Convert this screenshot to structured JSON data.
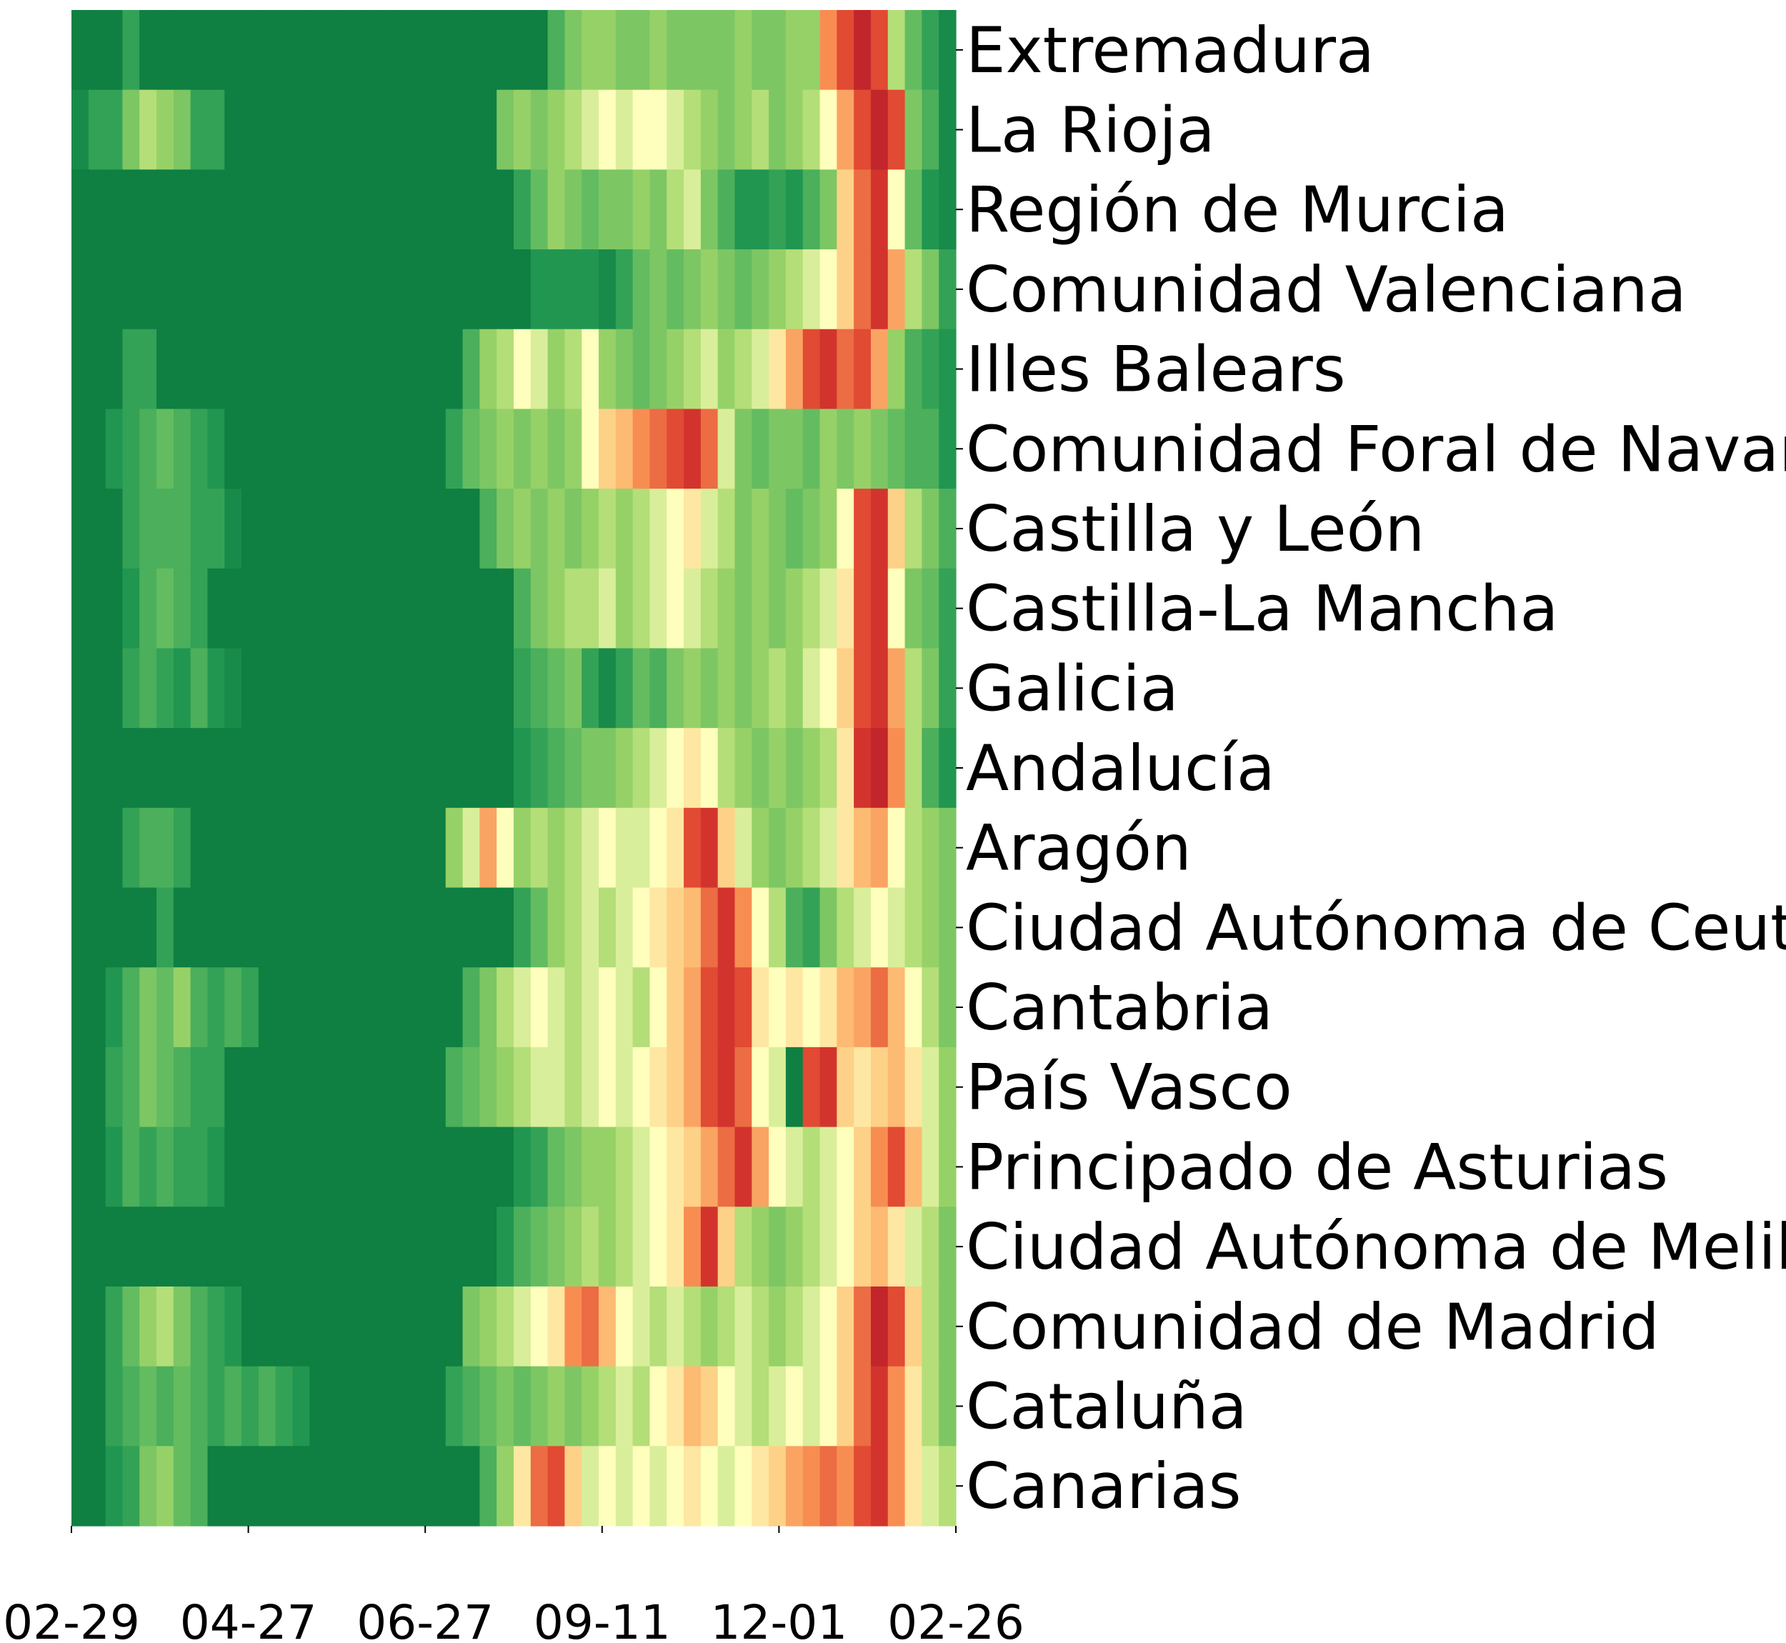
{
  "chart_data": {
    "type": "heatmap",
    "title": "",
    "xlabel": "",
    "ylabel": "",
    "x_ticks": [
      "02-29",
      "04-27",
      "06-27",
      "09-11",
      "12-01",
      "02-26"
    ],
    "rows": [
      "Extremadura",
      "La Rioja",
      "Región de Murcia",
      "Comunidad Valenciana",
      "Illes Balears",
      "Comunidad Foral de Navarra",
      "Castilla y León",
      "Castilla-La Mancha",
      "Galicia",
      "Andalucía",
      "Aragón",
      "Ciudad Autónoma de Ceuta",
      "Cantabria",
      "País Vasco",
      "Principado de Asturias",
      "Ciudad Autónoma de Melilla",
      "Comunidad de Madrid",
      "Cataluña",
      "Canarias"
    ],
    "colormap": "RdYlGn_r",
    "color_low": "#0f7f42",
    "color_mid": "#fefebd",
    "color_high": "#b2182b",
    "value_range": [
      0,
      1
    ],
    "n_columns": 52,
    "values": [
      [
        0,
        0,
        0,
        0.15,
        0,
        0,
        0,
        0,
        0,
        0,
        0,
        0,
        0,
        0,
        0,
        0,
        0,
        0,
        0,
        0,
        0,
        0,
        0,
        0,
        0,
        0,
        0,
        0,
        0.2,
        0.3,
        0.35,
        0.35,
        0.3,
        0.3,
        0.35,
        0.3,
        0.3,
        0.3,
        0.3,
        0.35,
        0.3,
        0.3,
        0.35,
        0.35,
        0.75,
        0.85,
        0.95,
        0.85,
        0.4,
        0.25,
        0.15,
        0.05
      ],
      [
        0.05,
        0.15,
        0.15,
        0.3,
        0.4,
        0.35,
        0.3,
        0.15,
        0.15,
        0,
        0,
        0,
        0,
        0,
        0,
        0,
        0,
        0,
        0,
        0,
        0,
        0,
        0,
        0,
        0,
        0.3,
        0.35,
        0.3,
        0.35,
        0.4,
        0.45,
        0.5,
        0.45,
        0.5,
        0.5,
        0.45,
        0.4,
        0.35,
        0.3,
        0.35,
        0.4,
        0.3,
        0.35,
        0.4,
        0.5,
        0.7,
        0.85,
        0.95,
        0.85,
        0.3,
        0.2,
        0.05
      ],
      [
        0,
        0,
        0,
        0,
        0,
        0,
        0,
        0,
        0,
        0,
        0,
        0,
        0,
        0,
        0,
        0,
        0,
        0,
        0,
        0,
        0,
        0,
        0,
        0,
        0,
        0,
        0.15,
        0.25,
        0.35,
        0.3,
        0.25,
        0.3,
        0.3,
        0.35,
        0.3,
        0.4,
        0.45,
        0.3,
        0.2,
        0.1,
        0.1,
        0.15,
        0.1,
        0.2,
        0.3,
        0.6,
        0.8,
        0.9,
        0.5,
        0.25,
        0.1,
        0.05
      ],
      [
        0,
        0,
        0,
        0,
        0,
        0,
        0,
        0,
        0,
        0,
        0,
        0,
        0,
        0,
        0,
        0,
        0,
        0,
        0,
        0,
        0,
        0,
        0,
        0,
        0,
        0,
        0,
        0.1,
        0.1,
        0.1,
        0.1,
        0.05,
        0.15,
        0.25,
        0.3,
        0.25,
        0.3,
        0.35,
        0.3,
        0.25,
        0.3,
        0.35,
        0.4,
        0.45,
        0.5,
        0.6,
        0.8,
        0.9,
        0.7,
        0.4,
        0.3,
        0.15
      ],
      [
        0,
        0,
        0,
        0.15,
        0.15,
        0,
        0,
        0,
        0,
        0,
        0,
        0,
        0,
        0,
        0,
        0,
        0,
        0,
        0,
        0,
        0,
        0,
        0,
        0.2,
        0.35,
        0.4,
        0.5,
        0.45,
        0.35,
        0.4,
        0.5,
        0.35,
        0.3,
        0.25,
        0.3,
        0.35,
        0.4,
        0.45,
        0.35,
        0.4,
        0.45,
        0.55,
        0.7,
        0.85,
        0.9,
        0.8,
        0.85,
        0.7,
        0.35,
        0.2,
        0.15,
        0.1
      ],
      [
        0,
        0,
        0.1,
        0.15,
        0.2,
        0.25,
        0.2,
        0.15,
        0.1,
        0,
        0,
        0,
        0,
        0,
        0,
        0,
        0,
        0,
        0,
        0,
        0,
        0,
        0.15,
        0.25,
        0.3,
        0.35,
        0.3,
        0.35,
        0.3,
        0.35,
        0.5,
        0.6,
        0.65,
        0.75,
        0.8,
        0.85,
        0.9,
        0.8,
        0.45,
        0.3,
        0.25,
        0.3,
        0.3,
        0.25,
        0.35,
        0.3,
        0.35,
        0.3,
        0.25,
        0.2,
        0.2,
        0.1
      ],
      [
        0,
        0,
        0,
        0.15,
        0.2,
        0.2,
        0.2,
        0.15,
        0.15,
        0.05,
        0,
        0,
        0,
        0,
        0,
        0,
        0,
        0,
        0,
        0,
        0,
        0,
        0,
        0,
        0.2,
        0.3,
        0.35,
        0.3,
        0.35,
        0.3,
        0.35,
        0.4,
        0.35,
        0.4,
        0.45,
        0.5,
        0.55,
        0.45,
        0.4,
        0.3,
        0.35,
        0.3,
        0.25,
        0.3,
        0.35,
        0.5,
        0.85,
        0.9,
        0.6,
        0.4,
        0.3,
        0.2
      ],
      [
        0,
        0,
        0,
        0.1,
        0.2,
        0.25,
        0.2,
        0.15,
        0,
        0,
        0,
        0,
        0,
        0,
        0,
        0,
        0,
        0,
        0,
        0,
        0,
        0,
        0,
        0,
        0,
        0,
        0.2,
        0.3,
        0.35,
        0.4,
        0.4,
        0.45,
        0.35,
        0.4,
        0.45,
        0.5,
        0.45,
        0.4,
        0.35,
        0.3,
        0.35,
        0.3,
        0.35,
        0.4,
        0.45,
        0.55,
        0.85,
        0.9,
        0.5,
        0.3,
        0.25,
        0.15
      ],
      [
        0,
        0,
        0,
        0.15,
        0.2,
        0.15,
        0.1,
        0.2,
        0.1,
        0.05,
        0,
        0,
        0,
        0,
        0,
        0,
        0,
        0,
        0,
        0,
        0,
        0,
        0,
        0,
        0,
        0,
        0.15,
        0.2,
        0.25,
        0.3,
        0.15,
        0.05,
        0.15,
        0.25,
        0.2,
        0.3,
        0.35,
        0.3,
        0.35,
        0.3,
        0.35,
        0.4,
        0.35,
        0.45,
        0.5,
        0.6,
        0.85,
        0.9,
        0.7,
        0.4,
        0.3,
        0.15
      ],
      [
        0,
        0,
        0,
        0,
        0,
        0,
        0,
        0,
        0,
        0,
        0,
        0,
        0,
        0,
        0,
        0,
        0,
        0,
        0,
        0,
        0,
        0,
        0,
        0,
        0,
        0,
        0.1,
        0.15,
        0.2,
        0.25,
        0.3,
        0.3,
        0.35,
        0.4,
        0.45,
        0.5,
        0.55,
        0.5,
        0.4,
        0.35,
        0.3,
        0.35,
        0.3,
        0.35,
        0.4,
        0.55,
        0.9,
        0.95,
        0.75,
        0.4,
        0.2,
        0.1
      ],
      [
        0,
        0,
        0,
        0.15,
        0.2,
        0.2,
        0.15,
        0,
        0,
        0,
        0,
        0,
        0,
        0,
        0,
        0,
        0,
        0,
        0,
        0,
        0,
        0,
        0.35,
        0.45,
        0.7,
        0.5,
        0.35,
        0.4,
        0.35,
        0.4,
        0.45,
        0.5,
        0.45,
        0.45,
        0.5,
        0.55,
        0.85,
        0.9,
        0.6,
        0.45,
        0.35,
        0.3,
        0.35,
        0.4,
        0.45,
        0.55,
        0.65,
        0.7,
        0.5,
        0.4,
        0.35,
        0.3
      ],
      [
        0,
        0,
        0,
        0,
        0,
        0.15,
        0,
        0,
        0,
        0,
        0,
        0,
        0,
        0,
        0,
        0,
        0,
        0,
        0,
        0,
        0,
        0,
        0,
        0,
        0,
        0,
        0.15,
        0.25,
        0.35,
        0.4,
        0.45,
        0.4,
        0.45,
        0.5,
        0.55,
        0.6,
        0.65,
        0.8,
        0.9,
        0.75,
        0.5,
        0.4,
        0.2,
        0.15,
        0.3,
        0.4,
        0.45,
        0.5,
        0.45,
        0.4,
        0.35,
        0.3
      ],
      [
        0,
        0,
        0.1,
        0.2,
        0.3,
        0.25,
        0.35,
        0.2,
        0.15,
        0.2,
        0.15,
        0,
        0,
        0,
        0,
        0,
        0,
        0,
        0,
        0,
        0,
        0,
        0,
        0.2,
        0.3,
        0.4,
        0.45,
        0.5,
        0.45,
        0.4,
        0.45,
        0.5,
        0.45,
        0.4,
        0.5,
        0.6,
        0.7,
        0.85,
        0.9,
        0.85,
        0.55,
        0.5,
        0.55,
        0.5,
        0.55,
        0.65,
        0.7,
        0.8,
        0.65,
        0.5,
        0.4,
        0.3
      ],
      [
        0,
        0,
        0.15,
        0.2,
        0.3,
        0.25,
        0.2,
        0.15,
        0.15,
        0,
        0,
        0,
        0,
        0,
        0,
        0,
        0,
        0,
        0,
        0,
        0,
        0,
        0.2,
        0.25,
        0.3,
        0.35,
        0.4,
        0.45,
        0.45,
        0.4,
        0.45,
        0.5,
        0.45,
        0.5,
        0.55,
        0.6,
        0.7,
        0.85,
        0.9,
        0.8,
        0.5,
        0.45,
        0,
        0.85,
        0.9,
        0.6,
        0.55,
        0.6,
        0.65,
        0.55,
        0.45,
        0.35
      ],
      [
        0,
        0,
        0.1,
        0.2,
        0.15,
        0.2,
        0.15,
        0.15,
        0.1,
        0,
        0,
        0,
        0,
        0,
        0,
        0,
        0,
        0,
        0,
        0,
        0,
        0,
        0,
        0,
        0,
        0,
        0.1,
        0.15,
        0.25,
        0.3,
        0.35,
        0.35,
        0.4,
        0.45,
        0.5,
        0.55,
        0.6,
        0.7,
        0.8,
        0.9,
        0.7,
        0.5,
        0.45,
        0.4,
        0.45,
        0.5,
        0.6,
        0.75,
        0.85,
        0.65,
        0.45,
        0.35
      ],
      [
        0,
        0,
        0,
        0,
        0,
        0,
        0,
        0,
        0,
        0,
        0,
        0,
        0,
        0,
        0,
        0,
        0,
        0,
        0,
        0,
        0,
        0,
        0,
        0,
        0,
        0.1,
        0.2,
        0.25,
        0.3,
        0.35,
        0.4,
        0.35,
        0.4,
        0.45,
        0.5,
        0.55,
        0.75,
        0.9,
        0.6,
        0.4,
        0.35,
        0.3,
        0.35,
        0.4,
        0.45,
        0.5,
        0.6,
        0.65,
        0.55,
        0.45,
        0.4,
        0.3
      ],
      [
        0,
        0,
        0.15,
        0.25,
        0.35,
        0.4,
        0.3,
        0.2,
        0.15,
        0.1,
        0,
        0,
        0,
        0,
        0,
        0,
        0,
        0,
        0,
        0,
        0,
        0,
        0,
        0.3,
        0.35,
        0.4,
        0.45,
        0.5,
        0.55,
        0.75,
        0.8,
        0.65,
        0.5,
        0.45,
        0.4,
        0.45,
        0.4,
        0.35,
        0.4,
        0.45,
        0.4,
        0.35,
        0.4,
        0.45,
        0.5,
        0.6,
        0.8,
        0.95,
        0.85,
        0.6,
        0.4,
        0.3
      ],
      [
        0,
        0,
        0.15,
        0.2,
        0.25,
        0.2,
        0.25,
        0.2,
        0.15,
        0.2,
        0.15,
        0.2,
        0.15,
        0.1,
        0,
        0,
        0,
        0,
        0,
        0,
        0,
        0,
        0.15,
        0.2,
        0.25,
        0.3,
        0.25,
        0.3,
        0.35,
        0.3,
        0.35,
        0.4,
        0.45,
        0.4,
        0.5,
        0.55,
        0.65,
        0.6,
        0.5,
        0.45,
        0.4,
        0.45,
        0.5,
        0.45,
        0.5,
        0.6,
        0.8,
        0.9,
        0.75,
        0.55,
        0.4,
        0.3
      ],
      [
        0,
        0,
        0.1,
        0.15,
        0.3,
        0.35,
        0.25,
        0.2,
        0,
        0,
        0,
        0,
        0,
        0,
        0,
        0,
        0,
        0,
        0,
        0,
        0,
        0,
        0,
        0,
        0.2,
        0.35,
        0.55,
        0.8,
        0.85,
        0.6,
        0.45,
        0.5,
        0.45,
        0.5,
        0.45,
        0.5,
        0.55,
        0.5,
        0.45,
        0.5,
        0.55,
        0.6,
        0.7,
        0.75,
        0.8,
        0.75,
        0.85,
        0.9,
        0.75,
        0.55,
        0.45,
        0.4
      ]
    ]
  }
}
